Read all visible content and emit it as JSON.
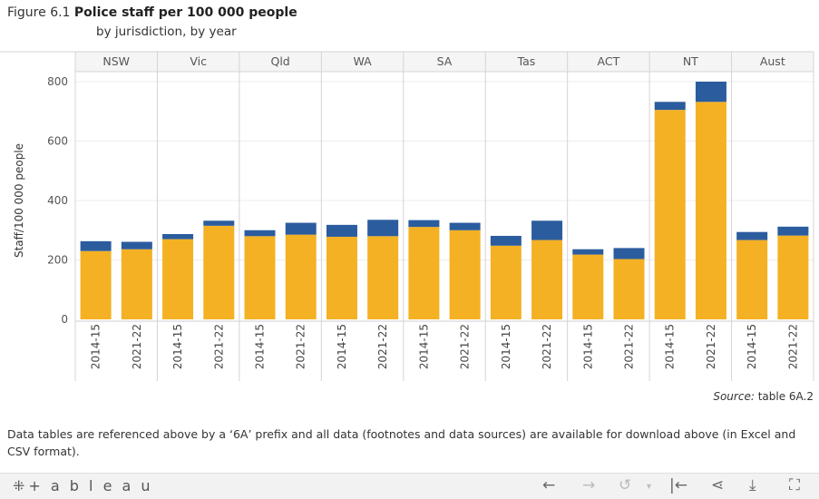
{
  "header": {
    "figure_prefix": "Figure 6.1",
    "title": "Police staff per 100 000 people",
    "subtitle": "by jurisdiction, by year"
  },
  "chart_data": {
    "type": "bar",
    "stacked": true,
    "ylabel": "Staff/100 000 people",
    "ylim": [
      0,
      800
    ],
    "yticks": [
      0,
      200,
      400,
      600,
      800
    ],
    "grid": true,
    "panels": [
      "NSW",
      "Vic",
      "Qld",
      "WA",
      "SA",
      "Tas",
      "ACT",
      "NT",
      "Aust"
    ],
    "years": [
      "2014-15",
      "2021-22"
    ],
    "series": [
      {
        "color": "#f4b123",
        "values": [
          [
            230,
            236
          ],
          [
            270,
            315
          ],
          [
            280,
            285
          ],
          [
            278,
            280
          ],
          [
            311,
            300
          ],
          [
            248,
            267
          ],
          [
            218,
            203
          ],
          [
            705,
            732
          ],
          [
            267,
            282
          ]
        ]
      },
      {
        "color": "#2b5c9e",
        "values": [
          [
            33,
            25
          ],
          [
            17,
            17
          ],
          [
            20,
            40
          ],
          [
            40,
            55
          ],
          [
            23,
            25
          ],
          [
            33,
            65
          ],
          [
            18,
            37
          ],
          [
            27,
            68
          ],
          [
            27,
            30
          ]
        ]
      }
    ]
  },
  "footer": {
    "source_label": "Source:",
    "source_ref": "table 6A.2",
    "note": "Data tables are referenced above by a ‘6A’ prefix and all data (footnotes and data sources) are available for download above (in Excel and CSV format)."
  },
  "toolbar": {
    "logo_mark": "⁜",
    "logo_text": "+ a b l e a u",
    "undo_icon": "←",
    "redo_icon": "→",
    "revert_icon": "↺",
    "dropdown_icon": "▾",
    "reset_icon": "|←",
    "share_icon": "⋖",
    "download_icon": "⤓",
    "fullscreen_icon": "⛶"
  }
}
